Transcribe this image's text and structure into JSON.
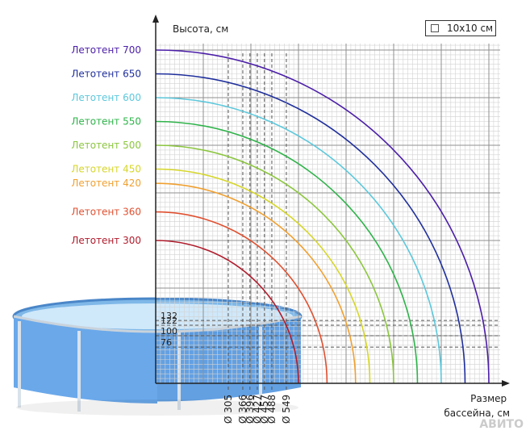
{
  "chart_data": {
    "type": "line",
    "title": "",
    "ylabel": "Высота, см",
    "xlabel": "Размер бассейна, см",
    "legend_label": "10x10 см",
    "xlim": [
      0,
      700
    ],
    "ylim": [
      0,
      700
    ],
    "grid": true,
    "x_ticks": [
      {
        "value": 305,
        "label": "Ø 305"
      },
      {
        "value": 366,
        "label": "Ø 366"
      },
      {
        "value": 396,
        "label": "Ø 396"
      },
      {
        "value": 427,
        "label": "Ø 427"
      },
      {
        "value": 457,
        "label": "Ø 457"
      },
      {
        "value": 488,
        "label": "Ø 488"
      },
      {
        "value": 549,
        "label": "Ø 549"
      }
    ],
    "y_ticks": [
      {
        "value": 132,
        "label": "132"
      },
      {
        "value": 122,
        "label": "122"
      },
      {
        "value": 100,
        "label": "100"
      },
      {
        "value": 76,
        "label": "76"
      }
    ],
    "series": [
      {
        "name": "Летотент 700",
        "radius": 700,
        "color": "#4b1ea8"
      },
      {
        "name": "Летотент 650",
        "radius": 650,
        "color": "#1f2f9c"
      },
      {
        "name": "Летотент 600",
        "radius": 600,
        "color": "#5cc8dc"
      },
      {
        "name": "Летотент 550",
        "radius": 550,
        "color": "#2fb34a"
      },
      {
        "name": "Летотент 500",
        "radius": 500,
        "color": "#8cc63f"
      },
      {
        "name": "Летотент 450",
        "radius": 450,
        "color": "#d6d62a"
      },
      {
        "name": "Летотент 420",
        "radius": 420,
        "color": "#f0a030"
      },
      {
        "name": "Летотент 360",
        "radius": 360,
        "color": "#e05030"
      },
      {
        "name": "Летотент 300",
        "radius": 300,
        "color": "#b01c2c"
      }
    ]
  },
  "watermark": "АВИТО"
}
